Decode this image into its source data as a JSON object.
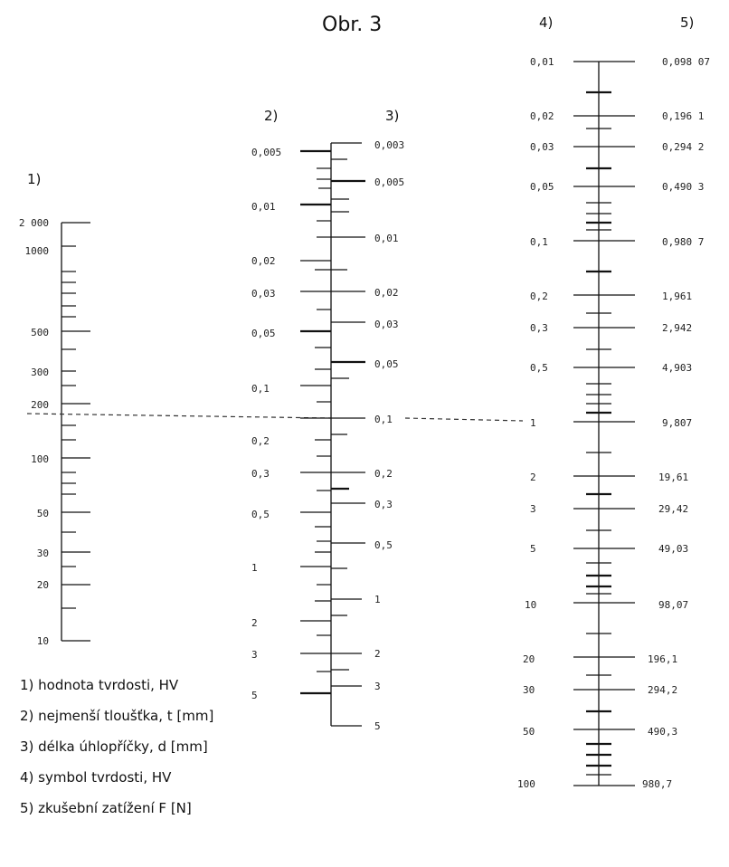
{
  "title": "Obr. 3",
  "scales": {
    "s1": {
      "header": "1)",
      "labels": [
        "2 000",
        "1000",
        "500",
        "300",
        "200",
        "100",
        "50",
        "30",
        "20",
        "10"
      ]
    },
    "s2": {
      "header": "2)",
      "labels": [
        "0,005",
        "0,01",
        "0,02",
        "0,03",
        "0,05",
        "0,1",
        "0,2",
        "0,3",
        "0,5",
        "1",
        "2",
        "3",
        "5"
      ]
    },
    "s3": {
      "header": "3)",
      "labels": [
        "0,003",
        "0,005",
        "0,01",
        "0,02",
        "0,03",
        "0,05",
        "0,1",
        "0,2",
        "0,3",
        "0,5",
        "1",
        "2",
        "3",
        "5"
      ]
    },
    "s4": {
      "header": "4)",
      "labels": [
        "0,01",
        "0,02",
        "0,03",
        "0,05",
        "0,1",
        "0,2",
        "0,3",
        "0,5",
        "1",
        "2",
        "3",
        "5",
        "10",
        "20",
        "30",
        "50",
        "100"
      ]
    },
    "s5": {
      "header": "5)",
      "labels": [
        "0,098 07",
        "0,196 1",
        "0,294 2",
        "0,490 3",
        "0,980 7",
        "1,961",
        "2,942",
        "4,903",
        "9,807",
        "19,61",
        "29,42",
        "49,03",
        "98,07",
        "196,1",
        "294,2",
        "490,3",
        "980,7"
      ]
    }
  },
  "legend": [
    "1) hodnota tvrdosti, HV",
    "2) nejmenší tloušťka, t [mm]",
    "3) délka úhlopříčky, d [mm]",
    "4) symbol tvrdosti, HV",
    "5) zkušební zatížení F [N]"
  ]
}
